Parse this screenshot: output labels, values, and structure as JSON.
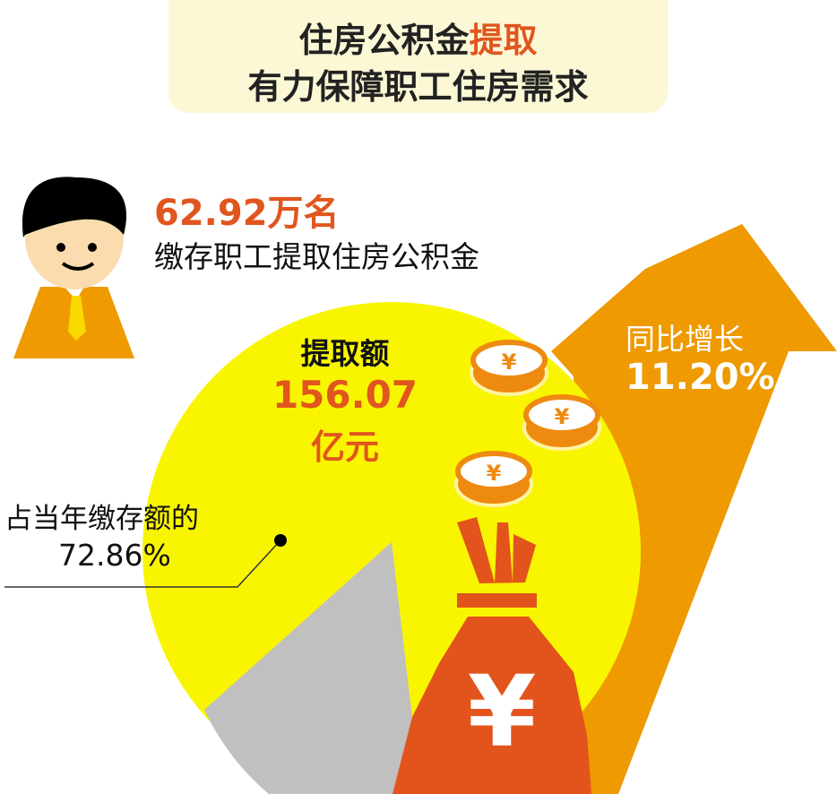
{
  "title": {
    "line1_prefix": "住房公积金",
    "line1_highlight": "提取",
    "line2": "有力保障职工住房需求"
  },
  "workers": {
    "count": "62.92万名",
    "label": "缴存职工提取住房公积金"
  },
  "withdrawal": {
    "label": "提取额",
    "amount": "156.07",
    "unit": "亿元"
  },
  "share": {
    "label": "占当年缴存额的",
    "value": "72.86%",
    "fraction": 0.7286
  },
  "growth": {
    "label": "同比增长",
    "value": "11.20%"
  },
  "colors": {
    "accent": "#e0561e",
    "arrow": "#ee9a00",
    "pie": "#f9f500",
    "pie_rest": "#c0c0c0",
    "title_bg": "#fcf8d6"
  },
  "icons": [
    "person-icon",
    "yen-coin-icon",
    "money-bag-icon",
    "up-arrow-icon"
  ]
}
